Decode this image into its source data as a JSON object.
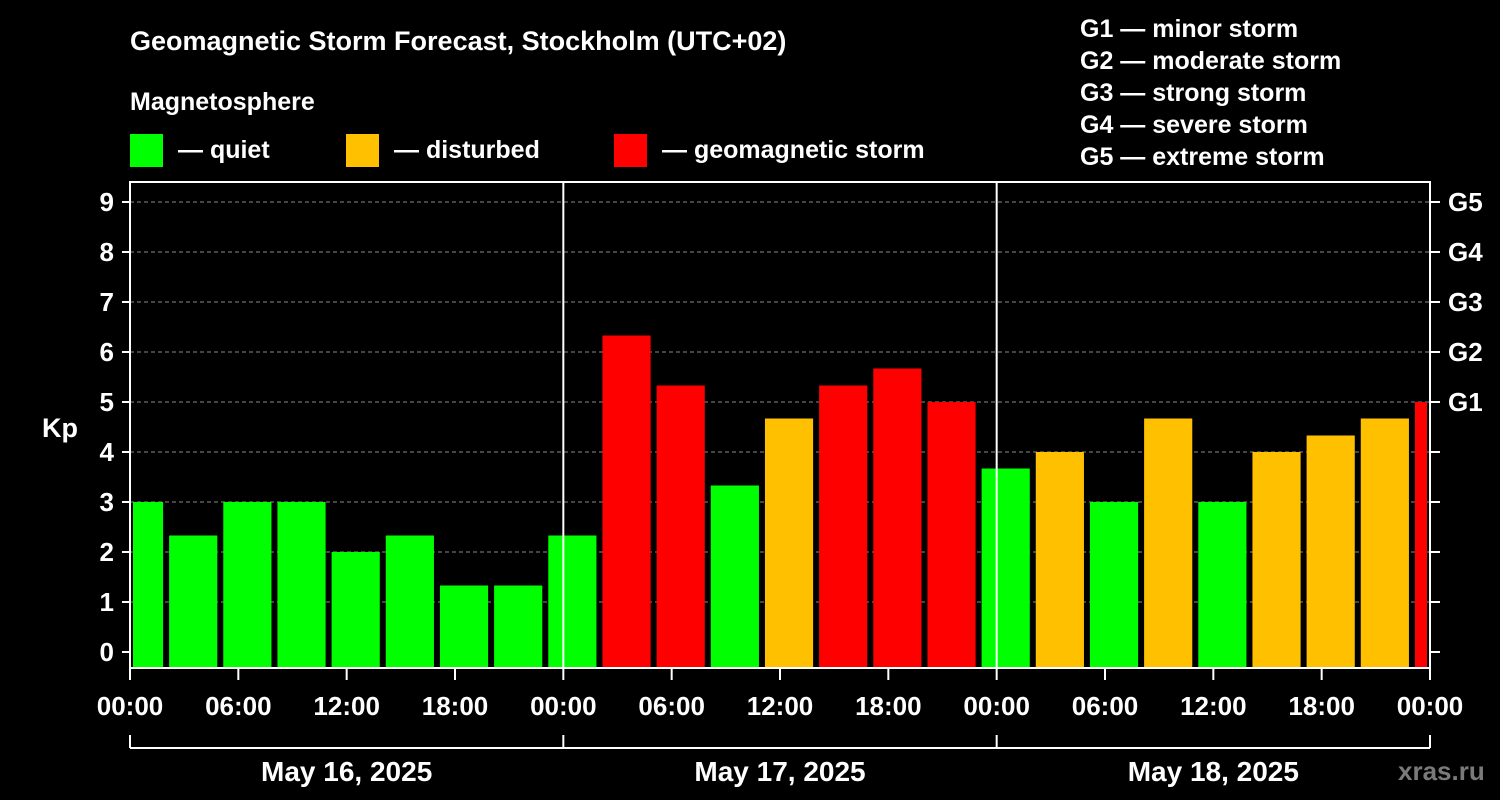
{
  "chart_data": {
    "type": "bar",
    "title": "Geomagnetic Storm Forecast, Stockholm (UTC+02)",
    "legend_title": "Magnetosphere",
    "legend": [
      {
        "label": "— quiet",
        "color": "#00ff00"
      },
      {
        "label": "— disturbed",
        "color": "#ffc000"
      },
      {
        "label": "— geomagnetic storm",
        "color": "#ff0000"
      }
    ],
    "storm_scale": [
      "G1 — minor storm",
      "G2 — moderate storm",
      "G3 — strong storm",
      "G4 — severe storm",
      "G5 — extreme storm"
    ],
    "ylabel": "Kp",
    "ylim": [
      0,
      9
    ],
    "yticks": [
      "0",
      "1",
      "2",
      "3",
      "4",
      "5",
      "6",
      "7",
      "8",
      "9"
    ],
    "right_ticks": [
      {
        "kp": 5,
        "label": "G1"
      },
      {
        "kp": 6,
        "label": "G2"
      },
      {
        "kp": 7,
        "label": "G3"
      },
      {
        "kp": 8,
        "label": "G4"
      },
      {
        "kp": 9,
        "label": "G5"
      }
    ],
    "xlim_hours": [
      0,
      72
    ],
    "xticks": [
      {
        "hour": 0,
        "label": "00:00"
      },
      {
        "hour": 6,
        "label": "06:00"
      },
      {
        "hour": 12,
        "label": "12:00"
      },
      {
        "hour": 18,
        "label": "18:00"
      },
      {
        "hour": 24,
        "label": "00:00"
      },
      {
        "hour": 30,
        "label": "06:00"
      },
      {
        "hour": 36,
        "label": "12:00"
      },
      {
        "hour": 42,
        "label": "18:00"
      },
      {
        "hour": 48,
        "label": "00:00"
      },
      {
        "hour": 54,
        "label": "06:00"
      },
      {
        "hour": 60,
        "label": "12:00"
      },
      {
        "hour": 66,
        "label": "18:00"
      },
      {
        "hour": 72,
        "label": "00:00"
      }
    ],
    "days": [
      {
        "label": "May 16, 2025",
        "start_hour": 0,
        "end_hour": 24
      },
      {
        "label": "May 17, 2025",
        "start_hour": 24,
        "end_hour": 48
      },
      {
        "label": "May 18, 2025",
        "start_hour": 48,
        "end_hour": 72
      }
    ],
    "day_dividers_hours": [
      24,
      48
    ],
    "bars": [
      {
        "start_hour": 0,
        "end_hour": 2,
        "kp": 3.0,
        "status": "quiet"
      },
      {
        "start_hour": 2,
        "end_hour": 5,
        "kp": 2.33,
        "status": "quiet"
      },
      {
        "start_hour": 5,
        "end_hour": 8,
        "kp": 3.0,
        "status": "quiet"
      },
      {
        "start_hour": 8,
        "end_hour": 11,
        "kp": 3.0,
        "status": "quiet"
      },
      {
        "start_hour": 11,
        "end_hour": 14,
        "kp": 2.0,
        "status": "quiet"
      },
      {
        "start_hour": 14,
        "end_hour": 17,
        "kp": 2.33,
        "status": "quiet"
      },
      {
        "start_hour": 17,
        "end_hour": 20,
        "kp": 1.33,
        "status": "quiet"
      },
      {
        "start_hour": 20,
        "end_hour": 23,
        "kp": 1.33,
        "status": "quiet"
      },
      {
        "start_hour": 23,
        "end_hour": 26,
        "kp": 2.33,
        "status": "quiet"
      },
      {
        "start_hour": 26,
        "end_hour": 29,
        "kp": 6.33,
        "status": "storm"
      },
      {
        "start_hour": 29,
        "end_hour": 32,
        "kp": 5.33,
        "status": "storm"
      },
      {
        "start_hour": 32,
        "end_hour": 35,
        "kp": 3.33,
        "status": "quiet"
      },
      {
        "start_hour": 35,
        "end_hour": 38,
        "kp": 4.67,
        "status": "disturbed"
      },
      {
        "start_hour": 38,
        "end_hour": 41,
        "kp": 5.33,
        "status": "storm"
      },
      {
        "start_hour": 41,
        "end_hour": 44,
        "kp": 5.67,
        "status": "storm"
      },
      {
        "start_hour": 44,
        "end_hour": 47,
        "kp": 5.0,
        "status": "storm"
      },
      {
        "start_hour": 47,
        "end_hour": 50,
        "kp": 3.67,
        "status": "quiet"
      },
      {
        "start_hour": 50,
        "end_hour": 53,
        "kp": 4.0,
        "status": "disturbed"
      },
      {
        "start_hour": 53,
        "end_hour": 56,
        "kp": 3.0,
        "status": "quiet"
      },
      {
        "start_hour": 56,
        "end_hour": 59,
        "kp": 4.67,
        "status": "disturbed"
      },
      {
        "start_hour": 59,
        "end_hour": 62,
        "kp": 3.0,
        "status": "quiet"
      },
      {
        "start_hour": 62,
        "end_hour": 65,
        "kp": 4.0,
        "status": "disturbed"
      },
      {
        "start_hour": 65,
        "end_hour": 68,
        "kp": 4.33,
        "status": "disturbed"
      },
      {
        "start_hour": 68,
        "end_hour": 71,
        "kp": 4.67,
        "status": "disturbed"
      },
      {
        "start_hour": 71,
        "end_hour": 72,
        "kp": 5.0,
        "status": "storm"
      }
    ],
    "status_colors": {
      "quiet": "#00ff00",
      "disturbed": "#ffc000",
      "storm": "#ff0000"
    },
    "grid": true,
    "watermark": "xras.ru"
  }
}
